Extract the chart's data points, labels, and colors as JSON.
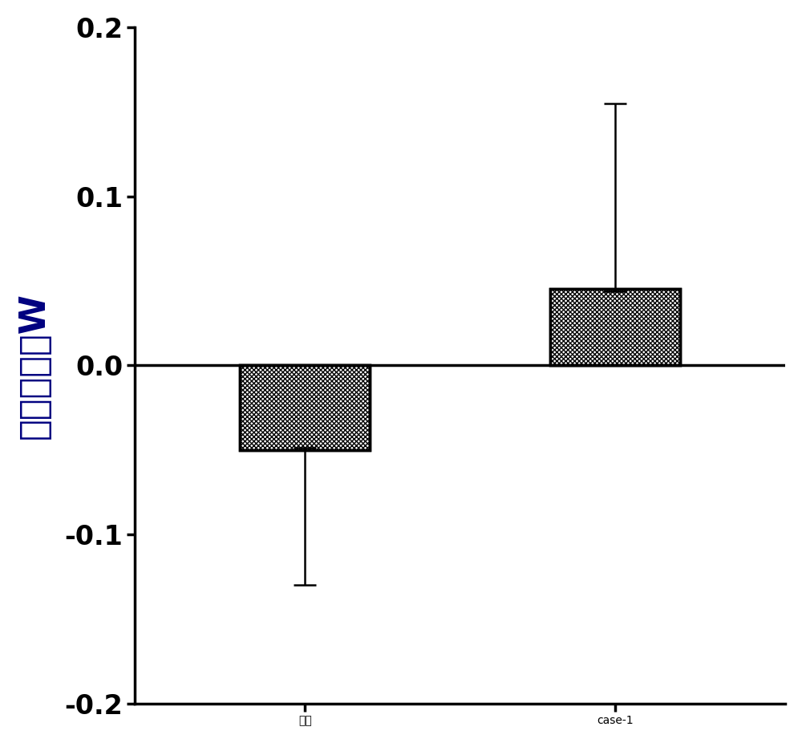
{
  "categories": [
    "纯水",
    "case-1"
  ],
  "values": [
    -0.05,
    0.045
  ],
  "errors_low": [
    0.08,
    0.0
  ],
  "errors_high": [
    0.0,
    0.11
  ],
  "bar_width": 0.42,
  "ylim": [
    -0.2,
    0.2
  ],
  "yticks": [
    -0.2,
    -0.1,
    0.0,
    0.1,
    0.2
  ],
  "ylabel": "保湿系数，W",
  "bar_color": "black",
  "bar_edgecolor": "black",
  "text_color": "#000080",
  "axis_color": "#000000",
  "tick_fontsize": 24,
  "label_fontsize": 32,
  "xlabel_fontsize": 28,
  "figsize": [
    10.0,
    9.26
  ],
  "dpi": 100
}
